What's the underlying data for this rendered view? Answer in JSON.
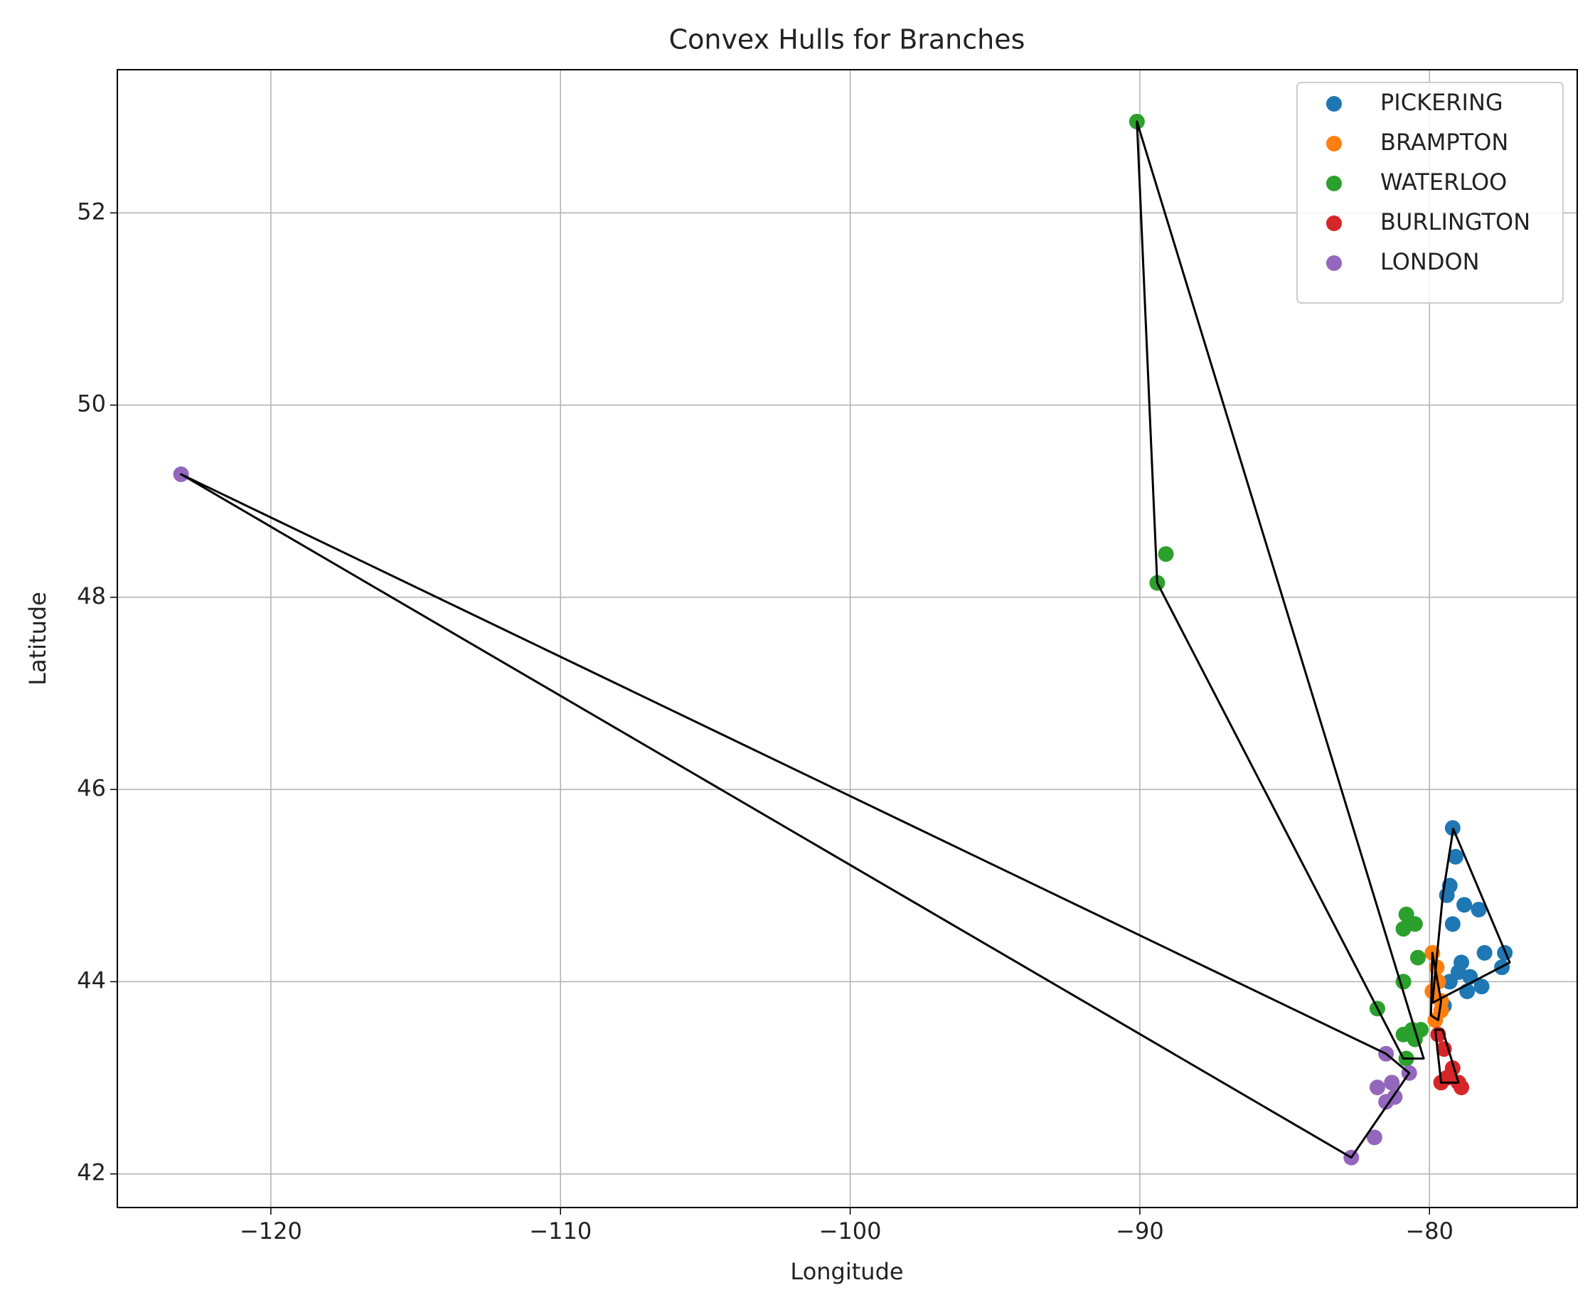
{
  "chart_data": {
    "type": "scatter",
    "title": "Convex Hulls for Branches",
    "x_label": "Longitude",
    "y_label": "Latitude",
    "xlim": [
      -125.3,
      -74.9
    ],
    "ylim": [
      41.65,
      53.49
    ],
    "xticks": [
      {
        "value": -120,
        "label": "−120"
      },
      {
        "value": -110,
        "label": "−110"
      },
      {
        "value": -100,
        "label": "−100"
      },
      {
        "value": -90,
        "label": "−90"
      },
      {
        "value": -80,
        "label": "−80"
      }
    ],
    "yticks": [
      42,
      44,
      46,
      48,
      50,
      52
    ],
    "grid": true,
    "legend": "upper right",
    "hull_color": "#000000",
    "series": [
      {
        "name": "PICKERING",
        "color": "#1f77b4",
        "x": [
          -79.2,
          -79.1,
          -79.3,
          -79.2,
          -79.4,
          -78.8,
          -78.3,
          -78.1,
          -77.4,
          -77.5,
          -78.9,
          -79.0,
          -78.6,
          -79.3,
          -78.7,
          -78.2,
          -79.5
        ],
        "values": [
          45.6,
          45.3,
          45.0,
          44.6,
          44.9,
          44.8,
          44.75,
          44.3,
          44.3,
          44.15,
          44.2,
          44.1,
          44.05,
          44.0,
          43.9,
          43.95,
          43.75
        ],
        "hull_x": [
          -79.18,
          -77.23,
          -79.9,
          -79.54
        ],
        "hull_y": [
          45.59,
          44.2,
          43.78,
          44.9
        ]
      },
      {
        "name": "BRAMPTON",
        "color": "#ff7f0e",
        "x": [
          -79.9,
          -79.7,
          -79.6,
          -79.8,
          -79.6,
          -79.9,
          -79.75
        ],
        "values": [
          44.3,
          44.0,
          43.8,
          43.6,
          43.7,
          43.9,
          44.15
        ],
        "hull_x": [
          -79.9,
          -79.6,
          -79.7,
          -79.95
        ],
        "hull_y": [
          44.3,
          43.8,
          43.6,
          43.65
        ]
      },
      {
        "name": "WATERLOO",
        "color": "#2ca02c",
        "x": [
          -90.1,
          -89.1,
          -89.4,
          -80.8,
          -80.5,
          -80.9,
          -80.4,
          -80.9,
          -81.8,
          -80.9,
          -80.6,
          -80.5,
          -80.8,
          -80.3
        ],
        "values": [
          52.95,
          48.45,
          48.15,
          44.7,
          44.6,
          44.55,
          44.25,
          44.0,
          43.72,
          43.45,
          43.5,
          43.4,
          43.2,
          43.5
        ],
        "hull_x": [
          -90.1,
          -89.4,
          -80.9,
          -80.2
        ],
        "hull_y": [
          52.95,
          48.15,
          43.2,
          43.2
        ]
      },
      {
        "name": "BURLINGTON",
        "color": "#d62728",
        "x": [
          -79.7,
          -79.5,
          -79.2,
          -79.0,
          -79.6,
          -79.4,
          -78.9
        ],
        "values": [
          43.45,
          43.3,
          43.1,
          42.95,
          42.95,
          43.0,
          42.9
        ],
        "hull_x": [
          -79.8,
          -79.55,
          -79.0,
          -79.6
        ],
        "hull_y": [
          43.5,
          43.5,
          42.95,
          42.95
        ]
      },
      {
        "name": "LONDON",
        "color": "#9467bd",
        "x": [
          -123.1,
          -82.7,
          -81.9,
          -81.5,
          -81.8,
          -81.3,
          -80.7,
          -81.5,
          -81.2
        ],
        "values": [
          49.28,
          42.17,
          42.38,
          42.75,
          42.9,
          42.95,
          43.05,
          43.25,
          42.8
        ],
        "hull_x": [
          -123.1,
          -81.5,
          -80.7,
          -82.7
        ],
        "hull_y": [
          49.28,
          43.25,
          43.05,
          42.17
        ]
      }
    ]
  }
}
